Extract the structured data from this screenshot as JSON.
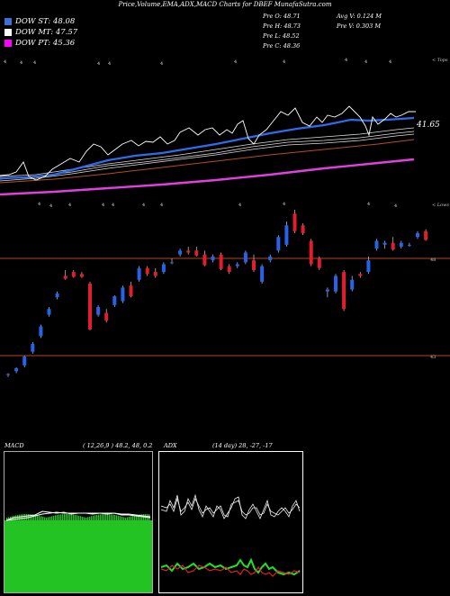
{
  "title": "Price,Volume,EMA,ADX,MACD Charts for DBEF MunafaSutra.com",
  "legend": [
    {
      "label": "DOW ST: 48.08",
      "color": "#3a6fd8"
    },
    {
      "label": "DOW MT: 47.57",
      "color": "#ffffff"
    },
    {
      "label": "DOW PT: 45.36",
      "color": "#ff00ff"
    }
  ],
  "ohlc": {
    "left": [
      "Pre  O: 48.71",
      "Pre  H: 48.73",
      "Pre  L: 48.52",
      "Pre  C: 48.36"
    ],
    "right": [
      "Avg V: 0.124  M",
      "Pre  V: 0.303 M"
    ]
  },
  "ema_label": "41.65",
  "top_corner_label": "< Tops",
  "lower_corner_label": "< Lows",
  "price_levels": [
    "48",
    "43"
  ],
  "macd_label": "MACD",
  "macd_values": "( 12,26,9 ) 48.2,  48,  0.2",
  "adx_label": "ADX",
  "adx_values": "(14  day) 28,  -27,  -17",
  "colors": {
    "up": "#2563eb",
    "down": "#e11d2e",
    "ema_blue": "#2f6bea",
    "ema_mag": "#e040e0",
    "ema_brown": "#b5501e",
    "hline": "#b5451e"
  },
  "chart_data": {
    "type": "candlestick",
    "candles": [
      {
        "o": 42.0,
        "h": 42.1,
        "l": 41.9,
        "c": 42.05
      },
      {
        "o": 42.2,
        "h": 42.4,
        "l": 42.1,
        "c": 42.35
      },
      {
        "o": 42.5,
        "h": 43.0,
        "l": 42.4,
        "c": 42.95
      },
      {
        "o": 43.2,
        "h": 43.7,
        "l": 43.1,
        "c": 43.6
      },
      {
        "o": 44.0,
        "h": 44.6,
        "l": 43.9,
        "c": 44.5
      },
      {
        "o": 45.1,
        "h": 45.5,
        "l": 45.0,
        "c": 45.4
      },
      {
        "o": 46.0,
        "h": 46.3,
        "l": 45.9,
        "c": 46.2
      },
      {
        "o": 47.1,
        "h": 47.4,
        "l": 46.9,
        "c": 46.95
      },
      {
        "o": 47.3,
        "h": 47.4,
        "l": 47.0,
        "c": 47.05
      },
      {
        "o": 47.2,
        "h": 47.3,
        "l": 47.0,
        "c": 47.05
      },
      {
        "o": 46.7,
        "h": 46.8,
        "l": 44.3,
        "c": 44.35
      },
      {
        "o": 45.1,
        "h": 45.6,
        "l": 45.0,
        "c": 45.5
      },
      {
        "o": 45.2,
        "h": 45.4,
        "l": 44.7,
        "c": 44.8
      },
      {
        "o": 45.6,
        "h": 46.1,
        "l": 45.5,
        "c": 46.05
      },
      {
        "o": 45.8,
        "h": 46.6,
        "l": 45.7,
        "c": 46.5
      },
      {
        "o": 46.6,
        "h": 46.8,
        "l": 46.0,
        "c": 46.05
      },
      {
        "o": 46.9,
        "h": 47.6,
        "l": 46.8,
        "c": 47.5
      },
      {
        "o": 47.5,
        "h": 47.6,
        "l": 47.1,
        "c": 47.2
      },
      {
        "o": 47.3,
        "h": 47.5,
        "l": 47.0,
        "c": 47.1
      },
      {
        "o": 47.3,
        "h": 47.8,
        "l": 47.2,
        "c": 47.7
      },
      {
        "o": 47.8,
        "h": 48.0,
        "l": 47.7,
        "c": 47.8
      },
      {
        "o": 48.2,
        "h": 48.5,
        "l": 48.1,
        "c": 48.4
      },
      {
        "o": 48.4,
        "h": 48.6,
        "l": 48.2,
        "c": 48.3
      },
      {
        "o": 48.4,
        "h": 48.6,
        "l": 48.1,
        "c": 48.15
      },
      {
        "o": 48.2,
        "h": 48.4,
        "l": 47.6,
        "c": 47.65
      },
      {
        "o": 47.9,
        "h": 48.2,
        "l": 47.8,
        "c": 48.1
      },
      {
        "o": 48.2,
        "h": 48.3,
        "l": 47.4,
        "c": 47.45
      },
      {
        "o": 47.6,
        "h": 47.7,
        "l": 47.2,
        "c": 47.3
      },
      {
        "o": 47.6,
        "h": 47.8,
        "l": 47.5,
        "c": 47.7
      },
      {
        "o": 47.8,
        "h": 48.4,
        "l": 47.7,
        "c": 48.3
      },
      {
        "o": 47.9,
        "h": 48.2,
        "l": 47.3,
        "c": 47.4
      },
      {
        "o": 46.8,
        "h": 47.7,
        "l": 46.7,
        "c": 47.6
      },
      {
        "o": 47.9,
        "h": 48.2,
        "l": 47.8,
        "c": 48.1
      },
      {
        "o": 48.4,
        "h": 49.2,
        "l": 48.3,
        "c": 49.1
      },
      {
        "o": 48.7,
        "h": 49.9,
        "l": 48.6,
        "c": 49.7
      },
      {
        "o": 50.3,
        "h": 50.5,
        "l": 49.3,
        "c": 49.4
      },
      {
        "o": 49.7,
        "h": 49.8,
        "l": 49.2,
        "c": 49.3
      },
      {
        "o": 48.9,
        "h": 49.0,
        "l": 47.6,
        "c": 47.7
      },
      {
        "o": 48.0,
        "h": 48.1,
        "l": 47.4,
        "c": 47.5
      },
      {
        "o": 46.3,
        "h": 46.5,
        "l": 46.0,
        "c": 46.4
      },
      {
        "o": 46.3,
        "h": 47.2,
        "l": 46.2,
        "c": 47.1
      },
      {
        "o": 47.3,
        "h": 47.4,
        "l": 45.3,
        "c": 45.4
      },
      {
        "o": 46.4,
        "h": 47.1,
        "l": 46.3,
        "c": 46.9
      },
      {
        "o": 47.2,
        "h": 47.3,
        "l": 47.0,
        "c": 47.1
      },
      {
        "o": 47.3,
        "h": 48.1,
        "l": 47.2,
        "c": 47.9
      },
      {
        "o": 48.5,
        "h": 49.0,
        "l": 48.4,
        "c": 48.9
      },
      {
        "o": 48.7,
        "h": 48.9,
        "l": 48.5,
        "c": 48.8
      },
      {
        "o": 48.8,
        "h": 49.1,
        "l": 48.4,
        "c": 48.45
      },
      {
        "o": 48.6,
        "h": 48.9,
        "l": 48.5,
        "c": 48.8
      },
      {
        "o": 48.7,
        "h": 48.8,
        "l": 48.6,
        "c": 48.7
      },
      {
        "o": 49.1,
        "h": 49.4,
        "l": 49.0,
        "c": 49.3
      },
      {
        "o": 49.4,
        "h": 49.5,
        "l": 48.9,
        "c": 48.95
      }
    ]
  }
}
